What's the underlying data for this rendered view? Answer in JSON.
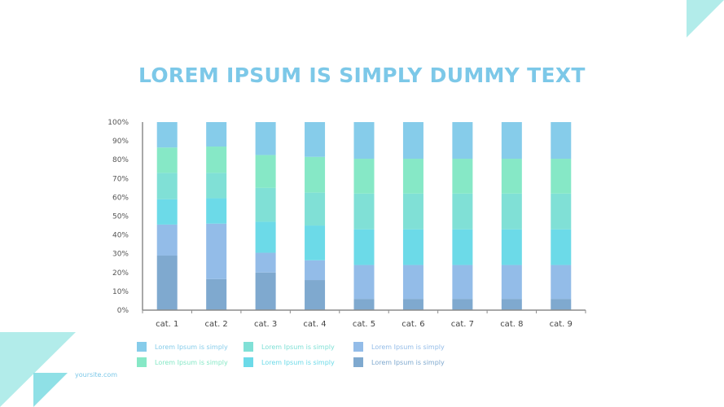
{
  "slide": {
    "title": "LOREM IPSUM IS SIMPLY DUMMY TEXT",
    "footer": "yoursite.com"
  },
  "colors": {
    "accent": "#7cc8e8",
    "corner": "#b2ecea",
    "axis": "#8c8c8c"
  },
  "chart_data": {
    "type": "bar",
    "stacked": true,
    "normalized": true,
    "categories": [
      "cat. 1",
      "cat. 2",
      "cat. 3",
      "cat. 4",
      "cat. 5",
      "cat. 6",
      "cat. 7",
      "cat. 8",
      "cat. 9"
    ],
    "ylim": [
      0,
      100
    ],
    "yticks": [
      "0%",
      "10%",
      "20%",
      "30%",
      "40%",
      "50%",
      "60%",
      "70%",
      "80%",
      "90%",
      "100%"
    ],
    "grid": false,
    "legend_position": "bottom",
    "series": [
      {
        "name": "Lorem Ipsum is simply",
        "color": "#7fa9cf",
        "values": [
          29,
          16.5,
          20,
          16,
          6,
          6,
          6,
          6,
          6
        ]
      },
      {
        "name": "Lorem Ipsum is simply",
        "color": "#93bce8",
        "values": [
          16.5,
          29.5,
          10.5,
          10.5,
          18,
          18,
          18,
          18,
          18
        ]
      },
      {
        "name": "Lorem Ipsum is simply",
        "color": "#6cdae8",
        "values": [
          13.5,
          13.5,
          16.5,
          18.5,
          19,
          19,
          19,
          19,
          19
        ]
      },
      {
        "name": "Lorem Ipsum is simply",
        "color": "#80e0d6",
        "values": [
          14,
          13.5,
          18,
          17.5,
          19,
          19,
          19,
          19,
          19
        ]
      },
      {
        "name": "Lorem Ipsum is simply",
        "color": "#86e8c6",
        "values": [
          13.5,
          14,
          17.5,
          19,
          18.5,
          18.5,
          18.5,
          18.5,
          18.5
        ]
      },
      {
        "name": "Lorem Ipsum is simply",
        "color": "#86ccea",
        "values": [
          13.5,
          13,
          17.5,
          18.5,
          19.5,
          19.5,
          19.5,
          19.5,
          19.5
        ]
      }
    ],
    "legend": [
      {
        "label": "Lorem Ipsum is simply",
        "color": "#86ccea"
      },
      {
        "label": "Lorem Ipsum is simply",
        "color": "#86e8c6"
      },
      {
        "label": "Lorem Ipsum is simply",
        "color": "#80e0d6"
      },
      {
        "label": "Lorem Ipsum is simply",
        "color": "#6cdae8"
      },
      {
        "label": "Lorem Ipsum is simply",
        "color": "#93bce8"
      },
      {
        "label": "Lorem Ipsum is simply",
        "color": "#7fa9cf"
      }
    ]
  }
}
